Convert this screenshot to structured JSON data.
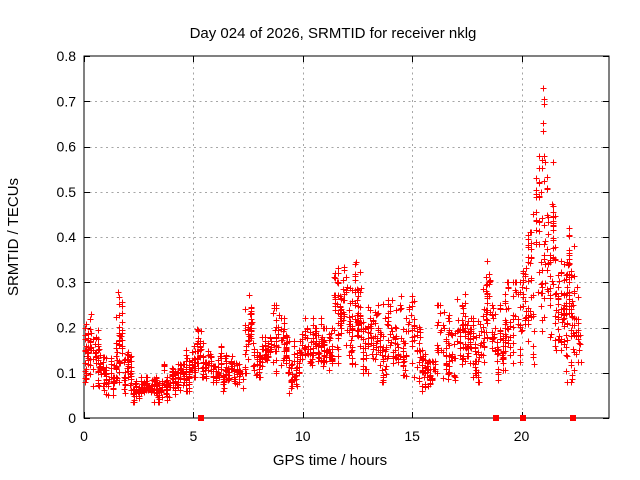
{
  "window": {
    "background_color": "#ffffff"
  },
  "chart_data": {
    "type": "scatter",
    "title": "Day 024 of 2026, SRMTID for receiver nklg",
    "xlabel": "GPS time / hours",
    "ylabel": "SRMTID / TECUs",
    "xlim": [
      0,
      24
    ],
    "ylim": [
      0,
      0.8
    ],
    "xticks": [
      0,
      5,
      10,
      15,
      20
    ],
    "yticks": [
      0,
      0.1,
      0.2,
      0.3,
      0.4,
      0.5,
      0.6,
      0.7,
      0.8
    ],
    "grid": true,
    "legend_position": "none",
    "marker": "plus",
    "marker_color": "#ff0000",
    "grid_color": "#a6a6a6",
    "axis_color": "#000000",
    "series": [
      {
        "name": "SRMTID",
        "representation": "density_profile",
        "note": "dense 1-day scatter; segments are [hour_start, hour_end, n_points, y_min, y_max] in TECUs read from the plot",
        "segments": [
          [
            0.0,
            0.35,
            45,
            0.08,
            0.23
          ],
          [
            0.35,
            0.7,
            35,
            0.07,
            0.2
          ],
          [
            0.7,
            1.4,
            55,
            0.05,
            0.15
          ],
          [
            1.4,
            1.8,
            45,
            0.08,
            0.26
          ],
          [
            1.8,
            2.2,
            40,
            0.05,
            0.16
          ],
          [
            2.2,
            3.6,
            130,
            0.035,
            0.09
          ],
          [
            3.6,
            4.6,
            85,
            0.04,
            0.12
          ],
          [
            4.6,
            5.0,
            40,
            0.06,
            0.15
          ],
          [
            5.0,
            5.5,
            50,
            0.09,
            0.2
          ],
          [
            5.5,
            6.3,
            55,
            0.08,
            0.16
          ],
          [
            6.3,
            7.3,
            75,
            0.06,
            0.14
          ],
          [
            7.3,
            7.7,
            40,
            0.1,
            0.26
          ],
          [
            7.7,
            8.6,
            65,
            0.09,
            0.18
          ],
          [
            8.6,
            9.3,
            60,
            0.1,
            0.25
          ],
          [
            9.3,
            9.9,
            50,
            0.05,
            0.17
          ],
          [
            9.9,
            10.9,
            75,
            0.1,
            0.22
          ],
          [
            10.9,
            11.4,
            45,
            0.06,
            0.2
          ],
          [
            11.4,
            11.8,
            45,
            0.12,
            0.32
          ],
          [
            11.8,
            12.7,
            85,
            0.12,
            0.34
          ],
          [
            12.7,
            13.6,
            70,
            0.1,
            0.25
          ],
          [
            13.6,
            14.4,
            65,
            0.08,
            0.26
          ],
          [
            14.4,
            15.4,
            70,
            0.08,
            0.27
          ],
          [
            15.4,
            16.1,
            55,
            0.05,
            0.15
          ],
          [
            16.1,
            17.0,
            65,
            0.08,
            0.25
          ],
          [
            17.0,
            17.6,
            55,
            0.12,
            0.28
          ],
          [
            17.6,
            18.2,
            50,
            0.08,
            0.22
          ],
          [
            18.2,
            18.6,
            40,
            0.12,
            0.33
          ],
          [
            18.6,
            19.2,
            50,
            0.08,
            0.25
          ],
          [
            19.2,
            20.0,
            60,
            0.08,
            0.3
          ],
          [
            20.0,
            20.6,
            55,
            0.12,
            0.45
          ],
          [
            20.6,
            21.5,
            95,
            0.18,
            0.58
          ],
          [
            21.5,
            22.0,
            60,
            0.15,
            0.45
          ],
          [
            22.0,
            22.45,
            75,
            0.08,
            0.42
          ],
          [
            22.45,
            22.75,
            15,
            0.05,
            0.3
          ]
        ],
        "outliers": [
          [
            1.57,
            0.279
          ],
          [
            1.6,
            0.267
          ],
          [
            7.55,
            0.271
          ],
          [
            11.62,
            0.332
          ],
          [
            12.38,
            0.318
          ],
          [
            12.45,
            0.344
          ],
          [
            18.42,
            0.346
          ],
          [
            20.98,
            0.652
          ],
          [
            21.0,
            0.73
          ],
          [
            21.0,
            0.635
          ],
          [
            21.02,
            0.693
          ],
          [
            21.03,
            0.705
          ],
          [
            21.05,
            0.578
          ],
          [
            21.08,
            0.565
          ],
          [
            22.55,
            0.29
          ],
          [
            22.6,
            0.21
          ],
          [
            22.65,
            0.15
          ]
        ],
        "zero_markers_hours": [
          5.34,
          18.85,
          20.07,
          22.35
        ]
      }
    ],
    "render": {
      "seed": 20260124,
      "column_width_hours": 0.12,
      "x_jitter_hours": 0.05,
      "marker_arm_px": 3,
      "square_size_px": 6
    }
  }
}
